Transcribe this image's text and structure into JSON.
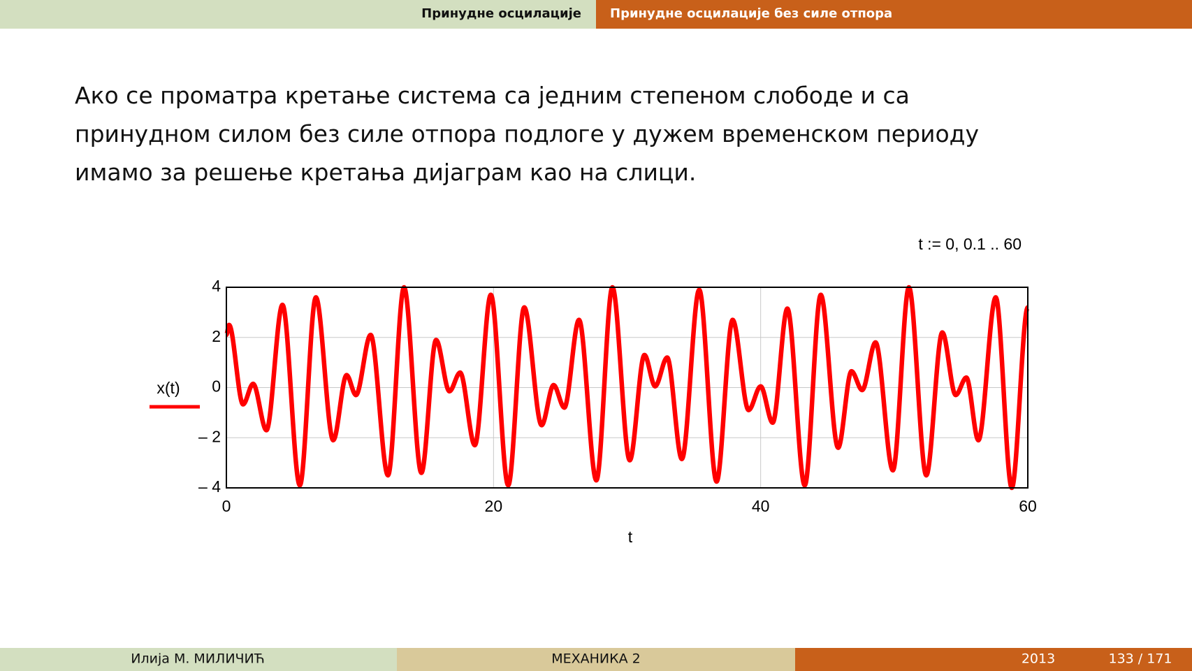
{
  "header": {
    "section": "Принудне осцилације",
    "subsection": "Принудне осцилације без силе отпора"
  },
  "body": {
    "lines": [
      "Ако се проматра кретање система са једним степеном слободе и са",
      "принудном силом без силе отпора подлоге у дужем временском периоду",
      "имамо за решење кретања дијаграм као на слици."
    ]
  },
  "chart_data": {
    "type": "line",
    "annotation": "t := 0, 0.1 .. 60",
    "xlabel": "t",
    "x": [
      0,
      0.2,
      1.25,
      2.0,
      3.0,
      4.2,
      5.5,
      6.7,
      8.0,
      9.0,
      9.7,
      10.8,
      12.1,
      13.3,
      14.6,
      15.7,
      16.7,
      17.5,
      18.6,
      19.8,
      21.1,
      22.3,
      23.6,
      24.5,
      25.3,
      26.4,
      27.7,
      28.9,
      30.2,
      31.3,
      32.1,
      33.0,
      34.1,
      35.4,
      36.7,
      37.9,
      39.1,
      40.0,
      40.9,
      42.0,
      43.3,
      44.5,
      45.8,
      46.8,
      47.6,
      48.6,
      49.9,
      51.1,
      52.4,
      53.6,
      54.6,
      55.4,
      56.3,
      57.6,
      58.8,
      60
    ],
    "series": [
      {
        "name": "x(t)",
        "color": "#ff0000",
        "values": [
          2.1,
          2.5,
          -0.67,
          0.15,
          -1.7,
          3.3,
          -3.9,
          3.6,
          -2.1,
          0.5,
          -0.3,
          2.1,
          -3.5,
          4.0,
          -3.4,
          1.9,
          -0.15,
          0.6,
          -2.3,
          3.7,
          -3.9,
          3.2,
          -1.5,
          0.1,
          -0.8,
          2.7,
          -3.7,
          4.0,
          -2.9,
          1.3,
          0.05,
          1.2,
          -2.85,
          3.9,
          -3.75,
          2.7,
          -0.9,
          0.05,
          -1.4,
          3.15,
          -3.9,
          3.7,
          -2.4,
          0.65,
          -0.1,
          1.8,
          -3.3,
          4.0,
          -3.5,
          2.2,
          -0.3,
          0.4,
          -2.1,
          3.6,
          -4.0,
          3.2
        ]
      }
    ],
    "xlim": [
      0,
      60
    ],
    "ylim": [
      -4,
      4
    ],
    "xticks": [
      0,
      20,
      40,
      60
    ],
    "yticks": [
      4,
      2,
      0,
      {
        "value": -2,
        "label": "– 2"
      },
      {
        "value": -4,
        "label": "– 4"
      }
    ],
    "grid": true
  },
  "footer": {
    "author": "Илија М. МИЛИЧИЋ",
    "title": "МЕХАНИКА 2",
    "year": "2013",
    "page": "133 / 171"
  }
}
